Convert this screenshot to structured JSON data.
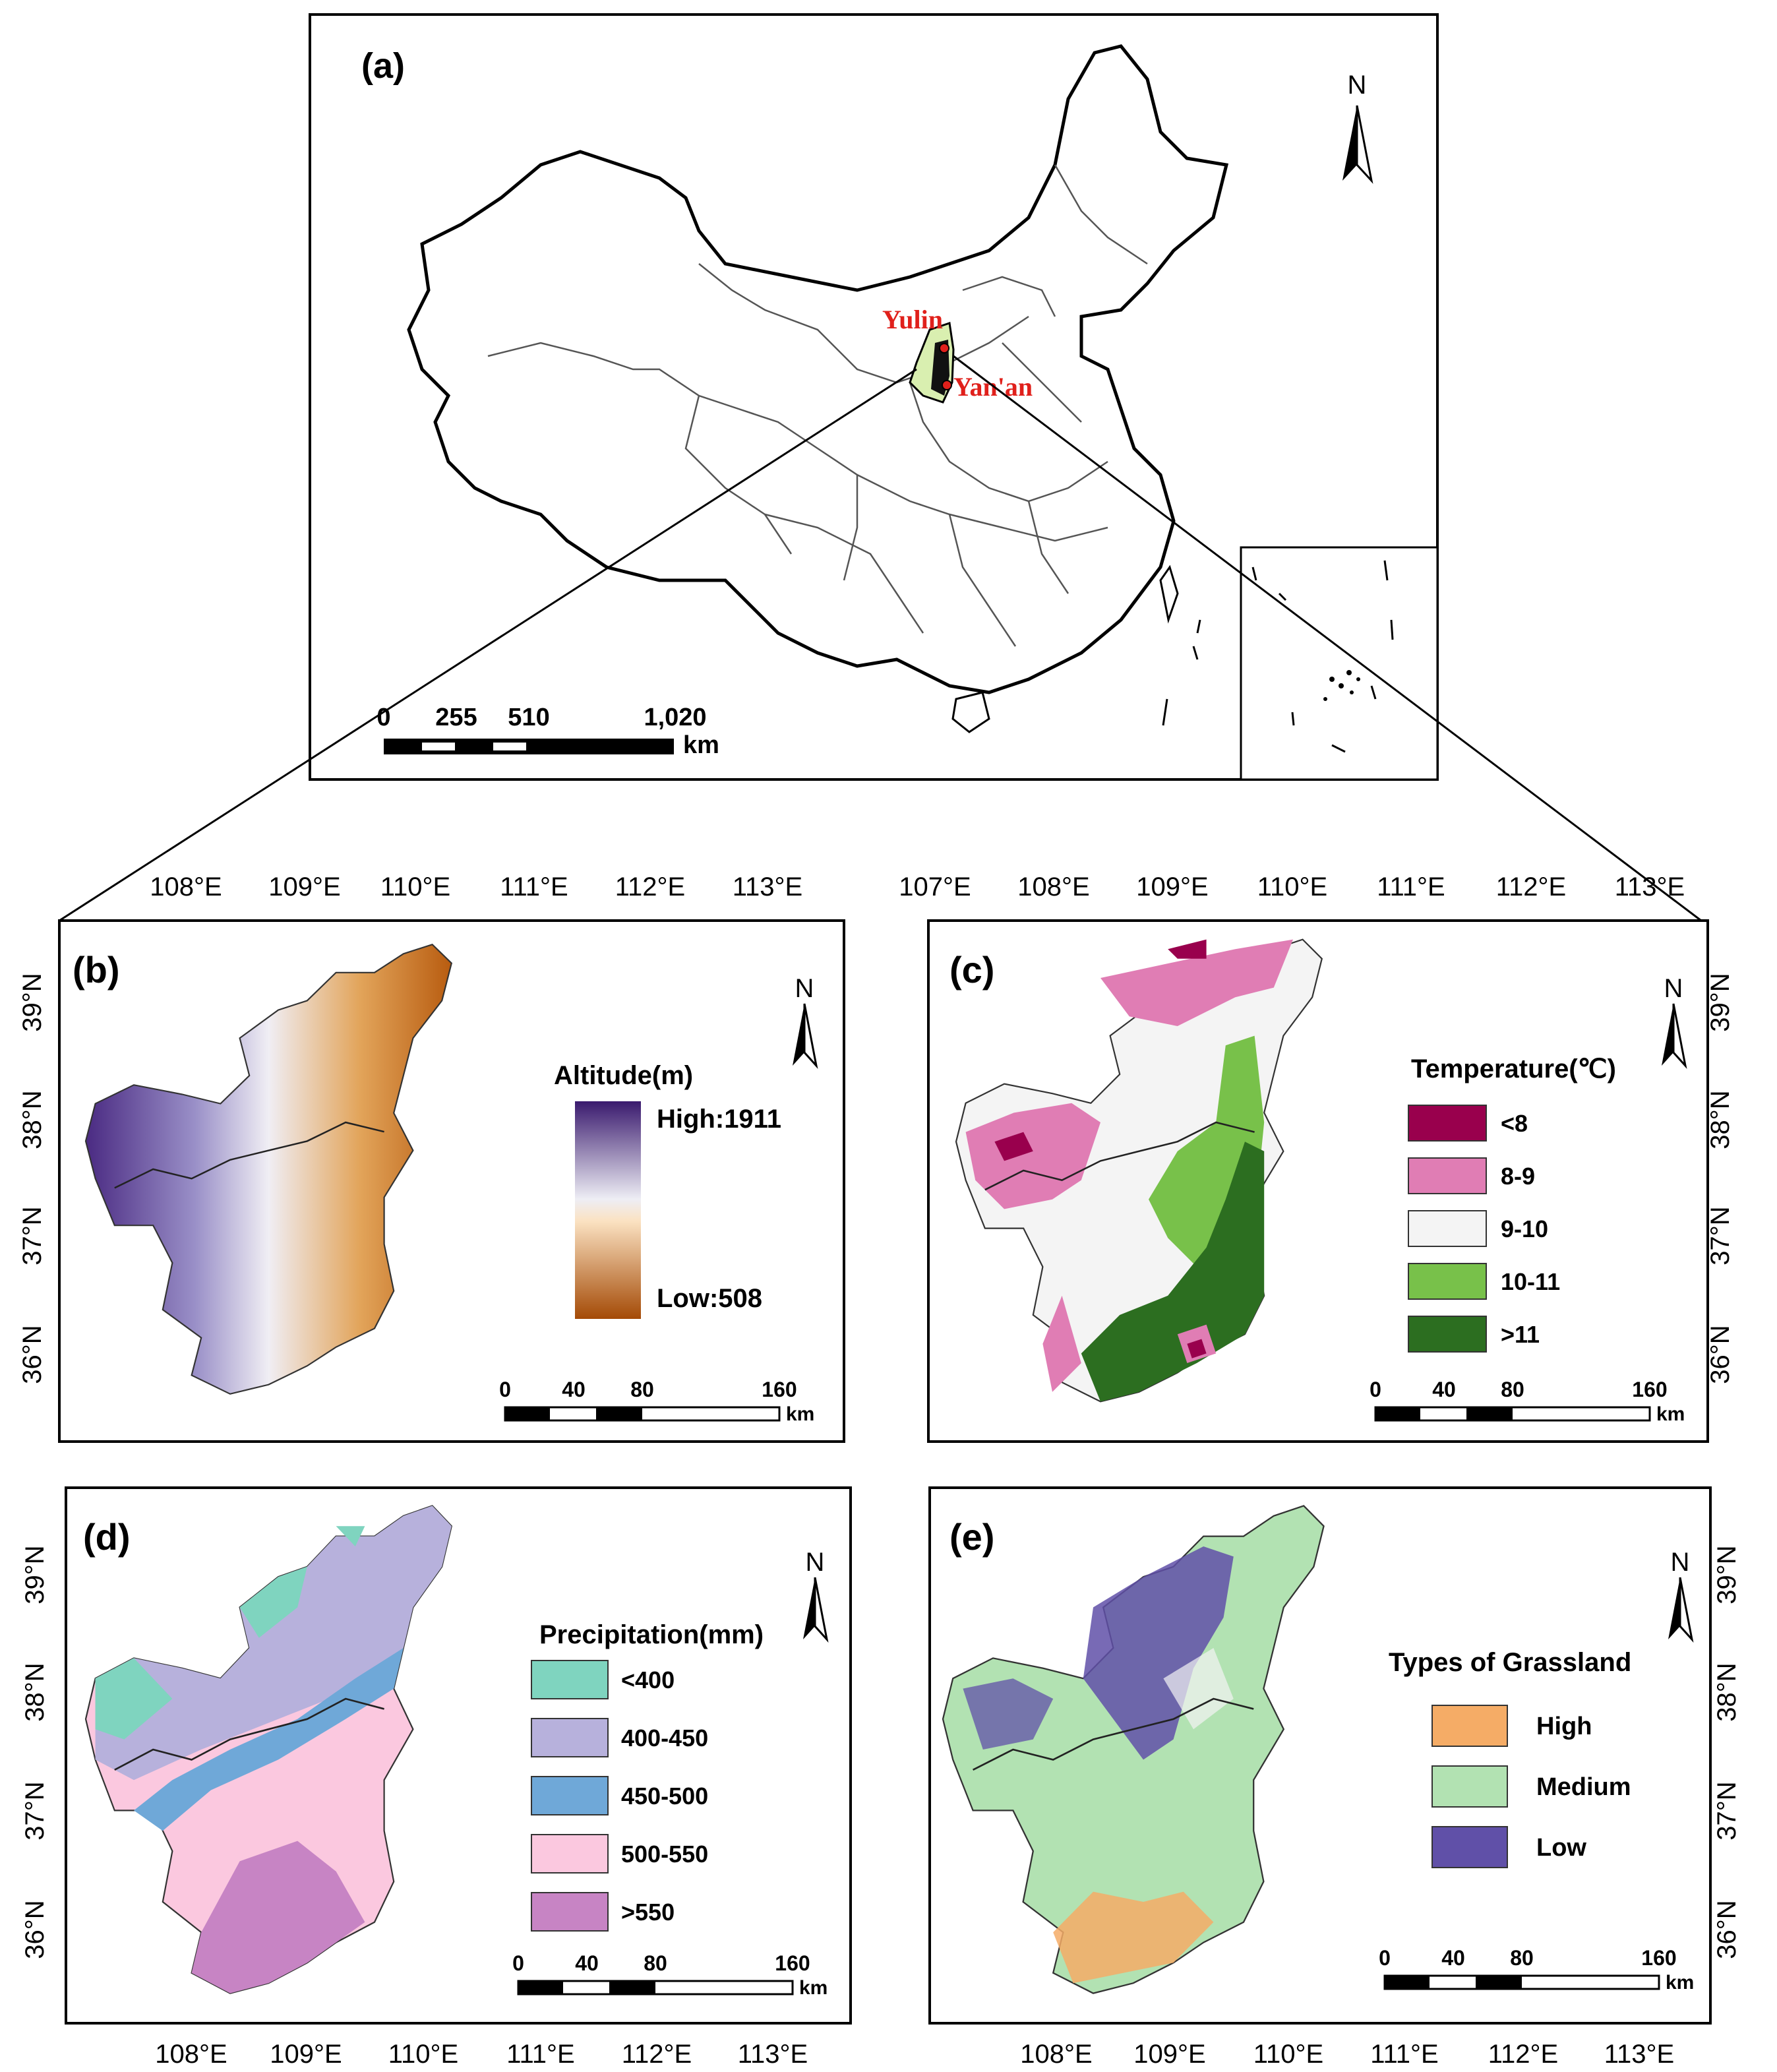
{
  "panel_labels": {
    "a": "(a)",
    "b": "(b)",
    "c": "(c)",
    "d": "(d)",
    "e": "(e)"
  },
  "north": "N",
  "cities": {
    "yulin": "Yulin",
    "yanan": "Yan'an"
  },
  "colors": {
    "alt_high": "#3a1a6e",
    "alt_mid": "#eeeef5",
    "alt_low": "#a44a06",
    "t1": "#99004d",
    "t2": "#e07db4",
    "t3": "#f4f4f4",
    "t4": "#78c14a",
    "t5": "#2c6e20",
    "p1": "#7fd4bf",
    "p2": "#b7b1dc",
    "p3": "#6fa8d8",
    "p4": "#fbc8df",
    "p5": "#c784c4",
    "g_high": "#f5ac66",
    "g_med": "#b2e2b2",
    "g_low": "#6050a8"
  },
  "scale_a": {
    "ticks": [
      "0",
      "255",
      "510",
      "1,020"
    ],
    "unit": "km"
  },
  "scale_small": {
    "ticks": [
      "0",
      "40",
      "80",
      "160"
    ],
    "unit": "km"
  },
  "axes": {
    "lon_b": [
      "108°E",
      "109°E",
      "110°E",
      "111°E",
      "112°E",
      "113°E"
    ],
    "lon_c": [
      "107°E",
      "108°E",
      "109°E",
      "110°E",
      "111°E",
      "112°E",
      "113°E"
    ],
    "lon_bottom": [
      "108°E",
      "109°E",
      "110°E",
      "111°E",
      "112°E",
      "113°E"
    ],
    "lat": [
      "39°N",
      "38°N",
      "37°N",
      "36°N"
    ]
  },
  "legend_b": {
    "title": "Altitude(m)",
    "high": "High:1911",
    "low": "Low:508"
  },
  "legend_c": {
    "title": "Temperature(℃)",
    "items": [
      "<8",
      "8-9",
      "9-10",
      "10-11",
      ">11"
    ]
  },
  "legend_d": {
    "title": "Precipitation(mm)",
    "items": [
      "<400",
      "400-450",
      "450-500",
      "500-550",
      ">550"
    ]
  },
  "legend_e": {
    "title": "Types of Grassland",
    "items": [
      "High",
      "Medium",
      "Low"
    ]
  }
}
